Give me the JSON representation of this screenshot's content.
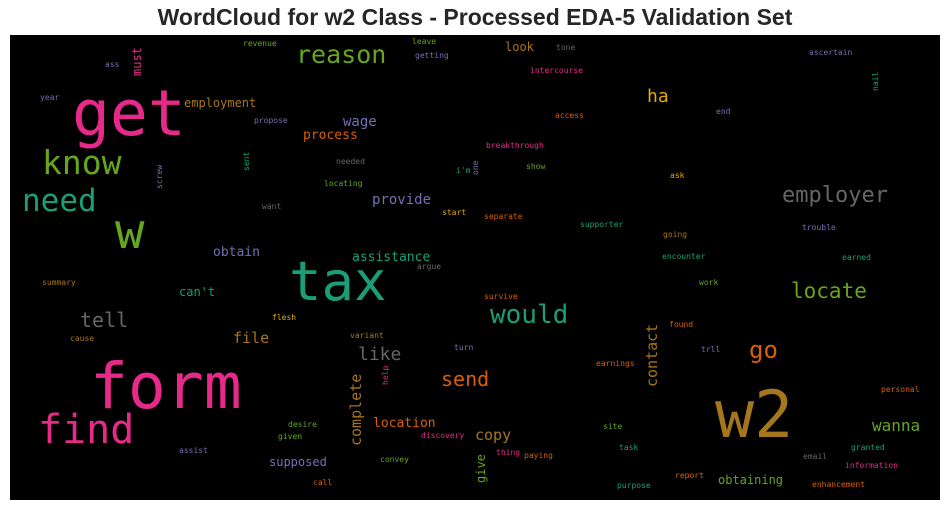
{
  "title": "WordCloud for w2 Class - Processed EDA-5 Validation Set",
  "chart_data": {
    "type": "wordcloud",
    "title": "WordCloud for w2 Class - Processed EDA-5 Validation Set",
    "colormap": [
      "#e7298a",
      "#1b9e77",
      "#66a61e",
      "#d95f02",
      "#7570b3",
      "#a6761d",
      "#666666",
      "#e6ab02"
    ],
    "words": [
      {
        "text": "tax",
        "color": "#1b9e77"
      },
      {
        "text": "form",
        "color": "#e7298a"
      },
      {
        "text": "get",
        "color": "#e7298a"
      },
      {
        "text": "w2",
        "color": "#a6761d"
      },
      {
        "text": "w",
        "color": "#66a61e"
      },
      {
        "text": "find",
        "color": "#e7298a"
      },
      {
        "text": "know",
        "color": "#66a61e"
      },
      {
        "text": "need",
        "color": "#1b9e77"
      },
      {
        "text": "would",
        "color": "#1b9e77"
      },
      {
        "text": "reason",
        "color": "#66a61e"
      },
      {
        "text": "employer",
        "color": "#666666"
      },
      {
        "text": "locate",
        "color": "#66a61e"
      },
      {
        "text": "go",
        "color": "#d95f02"
      },
      {
        "text": "send",
        "color": "#d95f02"
      },
      {
        "text": "tell",
        "color": "#666666"
      },
      {
        "text": "like",
        "color": "#666666"
      },
      {
        "text": "wanna",
        "color": "#66a61e"
      },
      {
        "text": "ha",
        "color": "#e6ab02"
      },
      {
        "text": "copy",
        "color": "#a6761d"
      },
      {
        "text": "file",
        "color": "#a6761d"
      },
      {
        "text": "wage",
        "color": "#7570b3"
      },
      {
        "text": "provide",
        "color": "#7570b3"
      },
      {
        "text": "complete",
        "color": "#a6761d"
      },
      {
        "text": "contact",
        "color": "#a6761d"
      },
      {
        "text": "location",
        "color": "#d95f02"
      },
      {
        "text": "assistance",
        "color": "#1b9e77"
      },
      {
        "text": "process",
        "color": "#d95f02"
      },
      {
        "text": "obtain",
        "color": "#7570b3"
      },
      {
        "text": "employment",
        "color": "#a6761d"
      },
      {
        "text": "supposed",
        "color": "#7570b3"
      },
      {
        "text": "obtaining",
        "color": "#66a61e"
      },
      {
        "text": "can't",
        "color": "#1b9e77"
      },
      {
        "text": "look",
        "color": "#a6761d"
      },
      {
        "text": "must",
        "color": "#e7298a"
      },
      {
        "text": "give",
        "color": "#66a61e"
      },
      {
        "text": "revenue",
        "color": "#66a61e"
      },
      {
        "text": "leave",
        "color": "#66a61e"
      },
      {
        "text": "getting",
        "color": "#7570b3"
      },
      {
        "text": "tone",
        "color": "#666666"
      },
      {
        "text": "ascertain",
        "color": "#7570b3"
      },
      {
        "text": "intercourse",
        "color": "#e7298a"
      },
      {
        "text": "ass",
        "color": "#7570b3"
      },
      {
        "text": "year",
        "color": "#7570b3"
      },
      {
        "text": "nail",
        "color": "#1b9e77"
      },
      {
        "text": "propose",
        "color": "#7570b3"
      },
      {
        "text": "access",
        "color": "#d95f02"
      },
      {
        "text": "end",
        "color": "#7570b3"
      },
      {
        "text": "breakthrough",
        "color": "#e7298a"
      },
      {
        "text": "needed",
        "color": "#666666"
      },
      {
        "text": "sent",
        "color": "#1b9e77"
      },
      {
        "text": "screw",
        "color": "#7570b3"
      },
      {
        "text": "i'm",
        "color": "#1b9e77"
      },
      {
        "text": "one",
        "color": "#7570b3"
      },
      {
        "text": "show",
        "color": "#66a61e"
      },
      {
        "text": "ask",
        "color": "#e6ab02"
      },
      {
        "text": "locating",
        "color": "#66a61e"
      },
      {
        "text": "want",
        "color": "#666666"
      },
      {
        "text": "start",
        "color": "#e6ab02"
      },
      {
        "text": "separate",
        "color": "#d95f02"
      },
      {
        "text": "supporter",
        "color": "#1b9e77"
      },
      {
        "text": "trouble",
        "color": "#7570b3"
      },
      {
        "text": "going",
        "color": "#a6761d"
      },
      {
        "text": "argue",
        "color": "#666666"
      },
      {
        "text": "encounter",
        "color": "#1b9e77"
      },
      {
        "text": "earned",
        "color": "#1b9e77"
      },
      {
        "text": "summary",
        "color": "#a6761d"
      },
      {
        "text": "survive",
        "color": "#d95f02"
      },
      {
        "text": "work",
        "color": "#66a61e"
      },
      {
        "text": "flesh",
        "color": "#e6ab02"
      },
      {
        "text": "found",
        "color": "#d95f02"
      },
      {
        "text": "cause",
        "color": "#a6761d"
      },
      {
        "text": "variant",
        "color": "#a6761d"
      },
      {
        "text": "turn",
        "color": "#7570b3"
      },
      {
        "text": "trll",
        "color": "#7570b3"
      },
      {
        "text": "help",
        "color": "#e7298a"
      },
      {
        "text": "earnings",
        "color": "#d95f02"
      },
      {
        "text": "personal",
        "color": "#d95f02"
      },
      {
        "text": "desire",
        "color": "#66a61e"
      },
      {
        "text": "given",
        "color": "#66a61e"
      },
      {
        "text": "discovery",
        "color": "#e7298a"
      },
      {
        "text": "site",
        "color": "#66a61e"
      },
      {
        "text": "assist",
        "color": "#7570b3"
      },
      {
        "text": "task",
        "color": "#1b9e77"
      },
      {
        "text": "granted",
        "color": "#1b9e77"
      },
      {
        "text": "thing",
        "color": "#e7298a"
      },
      {
        "text": "paying",
        "color": "#d95f02"
      },
      {
        "text": "convey",
        "color": "#66a61e"
      },
      {
        "text": "email",
        "color": "#666666"
      },
      {
        "text": "information",
        "color": "#e7298a"
      },
      {
        "text": "call",
        "color": "#d95f02"
      },
      {
        "text": "report",
        "color": "#d95f02"
      },
      {
        "text": "purpose",
        "color": "#1b9e77"
      },
      {
        "text": "enhancement",
        "color": "#d95f02"
      }
    ]
  }
}
